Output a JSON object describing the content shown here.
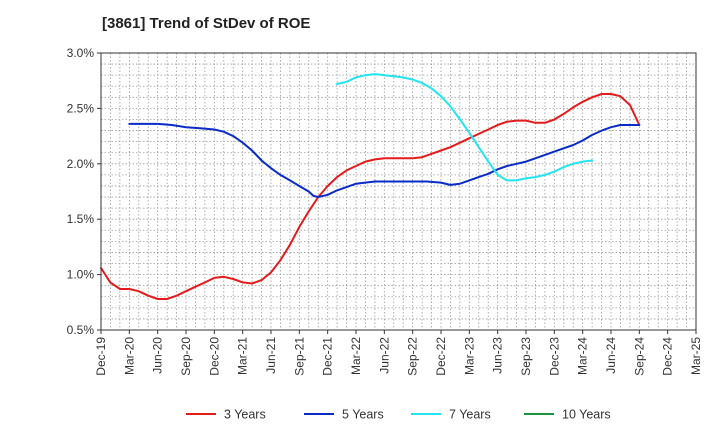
{
  "title": "[3861]  Trend of StDev of ROE",
  "chart_data": {
    "type": "line",
    "title": "[3861]  Trend of StDev of ROE",
    "xlabel": "",
    "ylabel": "",
    "ylim": [
      0.5,
      3.0
    ],
    "y_ticks": [
      0.5,
      1.0,
      1.5,
      2.0,
      2.5,
      3.0
    ],
    "y_tick_labels": [
      "0.5%",
      "1.0%",
      "1.5%",
      "2.0%",
      "2.5%",
      "3.0%"
    ],
    "x_tick_labels": [
      "Dec-19",
      "Mar-20",
      "Jun-20",
      "Sep-20",
      "Dec-20",
      "Mar-21",
      "Jun-21",
      "Sep-21",
      "Dec-21",
      "Mar-22",
      "Jun-22",
      "Sep-22",
      "Dec-22",
      "Mar-23",
      "Jun-23",
      "Sep-23",
      "Dec-23",
      "Mar-24",
      "Jun-24",
      "Sep-24",
      "Dec-24",
      "Mar-25"
    ],
    "grid": true,
    "legend_position": "bottom",
    "series": [
      {
        "name": "3 Years",
        "color": "#e41a1c",
        "points": [
          [
            0,
            1.06
          ],
          [
            0.33,
            0.93
          ],
          [
            0.67,
            0.87
          ],
          [
            1,
            0.87
          ],
          [
            1.33,
            0.85
          ],
          [
            1.67,
            0.81
          ],
          [
            2,
            0.78
          ],
          [
            2.33,
            0.78
          ],
          [
            2.67,
            0.81
          ],
          [
            3,
            0.85
          ],
          [
            3.33,
            0.89
          ],
          [
            3.67,
            0.93
          ],
          [
            4,
            0.97
          ],
          [
            4.33,
            0.98
          ],
          [
            4.67,
            0.96
          ],
          [
            5,
            0.93
          ],
          [
            5.33,
            0.92
          ],
          [
            5.67,
            0.95
          ],
          [
            6,
            1.02
          ],
          [
            6.33,
            1.13
          ],
          [
            6.67,
            1.27
          ],
          [
            7,
            1.43
          ],
          [
            7.33,
            1.57
          ],
          [
            7.67,
            1.7
          ],
          [
            8,
            1.8
          ],
          [
            8.33,
            1.88
          ],
          [
            8.67,
            1.94
          ],
          [
            9,
            1.98
          ],
          [
            9.33,
            2.02
          ],
          [
            9.67,
            2.04
          ],
          [
            10,
            2.05
          ],
          [
            10.33,
            2.05
          ],
          [
            10.67,
            2.05
          ],
          [
            11,
            2.05
          ],
          [
            11.33,
            2.06
          ],
          [
            11.67,
            2.09
          ],
          [
            12,
            2.12
          ],
          [
            12.33,
            2.15
          ],
          [
            12.67,
            2.19
          ],
          [
            13,
            2.23
          ],
          [
            13.33,
            2.27
          ],
          [
            13.67,
            2.31
          ],
          [
            14,
            2.35
          ],
          [
            14.33,
            2.38
          ],
          [
            14.67,
            2.39
          ],
          [
            15,
            2.39
          ],
          [
            15.33,
            2.37
          ],
          [
            15.67,
            2.37
          ],
          [
            16,
            2.4
          ],
          [
            16.33,
            2.45
          ],
          [
            16.67,
            2.51
          ],
          [
            17,
            2.56
          ],
          [
            17.33,
            2.6
          ],
          [
            17.67,
            2.63
          ],
          [
            18,
            2.63
          ],
          [
            18.33,
            2.61
          ],
          [
            18.67,
            2.53
          ],
          [
            19,
            2.35
          ]
        ]
      },
      {
        "name": "5 Years",
        "color": "#0a2bc8",
        "points": [
          [
            1,
            2.36
          ],
          [
            1.5,
            2.36
          ],
          [
            2,
            2.36
          ],
          [
            2.5,
            2.35
          ],
          [
            3,
            2.33
          ],
          [
            3.5,
            2.32
          ],
          [
            4,
            2.31
          ],
          [
            4.33,
            2.29
          ],
          [
            4.67,
            2.25
          ],
          [
            5,
            2.19
          ],
          [
            5.33,
            2.12
          ],
          [
            5.67,
            2.03
          ],
          [
            6,
            1.96
          ],
          [
            6.33,
            1.9
          ],
          [
            6.67,
            1.85
          ],
          [
            7,
            1.8
          ],
          [
            7.33,
            1.75
          ],
          [
            7.5,
            1.71
          ],
          [
            7.67,
            1.7
          ],
          [
            8,
            1.72
          ],
          [
            8.33,
            1.76
          ],
          [
            8.67,
            1.79
          ],
          [
            9,
            1.82
          ],
          [
            9.33,
            1.83
          ],
          [
            9.67,
            1.84
          ],
          [
            10,
            1.84
          ],
          [
            10.5,
            1.84
          ],
          [
            11,
            1.84
          ],
          [
            11.5,
            1.84
          ],
          [
            12,
            1.83
          ],
          [
            12.33,
            1.81
          ],
          [
            12.67,
            1.82
          ],
          [
            13,
            1.85
          ],
          [
            13.33,
            1.88
          ],
          [
            13.67,
            1.91
          ],
          [
            14,
            1.95
          ],
          [
            14.33,
            1.98
          ],
          [
            14.67,
            2.0
          ],
          [
            15,
            2.02
          ],
          [
            15.33,
            2.05
          ],
          [
            15.67,
            2.08
          ],
          [
            16,
            2.11
          ],
          [
            16.33,
            2.14
          ],
          [
            16.67,
            2.17
          ],
          [
            17,
            2.21
          ],
          [
            17.33,
            2.26
          ],
          [
            17.67,
            2.3
          ],
          [
            18,
            2.33
          ],
          [
            18.33,
            2.35
          ],
          [
            18.67,
            2.35
          ],
          [
            19,
            2.35
          ]
        ]
      },
      {
        "name": "7 Years",
        "color": "#22e5f0",
        "points": [
          [
            8.33,
            2.72
          ],
          [
            8.67,
            2.74
          ],
          [
            9,
            2.78
          ],
          [
            9.33,
            2.8
          ],
          [
            9.67,
            2.81
          ],
          [
            10,
            2.8
          ],
          [
            10.33,
            2.79
          ],
          [
            10.67,
            2.78
          ],
          [
            11,
            2.76
          ],
          [
            11.33,
            2.73
          ],
          [
            11.67,
            2.68
          ],
          [
            12,
            2.61
          ],
          [
            12.33,
            2.52
          ],
          [
            12.67,
            2.4
          ],
          [
            13,
            2.28
          ],
          [
            13.33,
            2.15
          ],
          [
            13.67,
            2.02
          ],
          [
            14,
            1.9
          ],
          [
            14.33,
            1.85
          ],
          [
            14.67,
            1.85
          ],
          [
            15,
            1.87
          ],
          [
            15.33,
            1.88
          ],
          [
            15.67,
            1.9
          ],
          [
            16,
            1.93
          ],
          [
            16.33,
            1.97
          ],
          [
            16.67,
            2.0
          ],
          [
            17,
            2.02
          ],
          [
            17.33,
            2.03
          ]
        ]
      },
      {
        "name": "10 Years",
        "color": "#1a9641",
        "points": []
      }
    ]
  }
}
